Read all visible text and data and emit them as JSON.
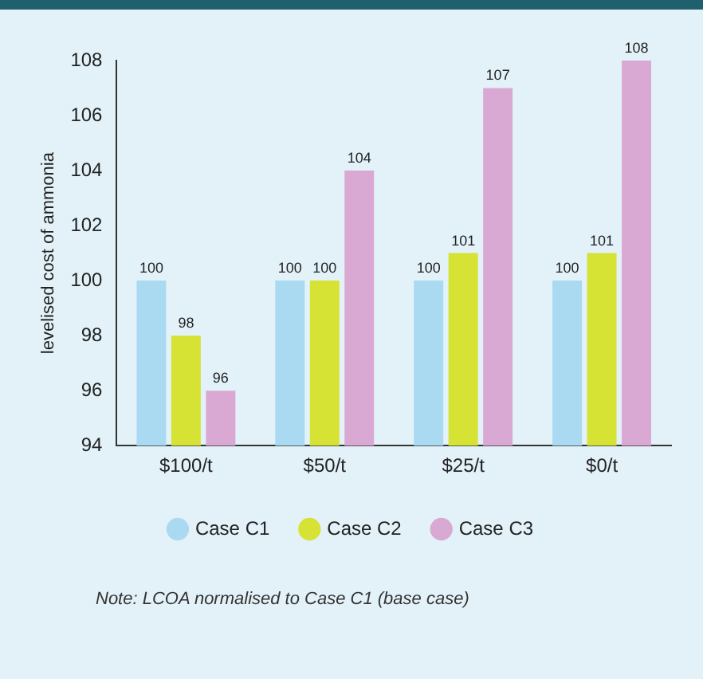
{
  "chart_data": {
    "type": "bar",
    "ylabel": "levelised cost of ammonia",
    "categories": [
      "$100/t",
      "$50/t",
      "$25/t",
      "$0/t"
    ],
    "series": [
      {
        "name": "Case C1",
        "color": "#a9daf2",
        "values": [
          100,
          100,
          100,
          100
        ]
      },
      {
        "name": "Case C2",
        "color": "#d6e234",
        "values": [
          98,
          100,
          101,
          101
        ]
      },
      {
        "name": "Case C3",
        "color": "#d9a9d3",
        "values": [
          96,
          104,
          107,
          108
        ]
      }
    ],
    "ylim": [
      94,
      108
    ],
    "yticks": [
      94,
      96,
      98,
      100,
      102,
      104,
      106,
      108
    ],
    "grid": false,
    "legend": "bottom",
    "data_labels": true,
    "annotations": [
      "Note: LCOA normalised to Case C1 (base case)"
    ]
  }
}
